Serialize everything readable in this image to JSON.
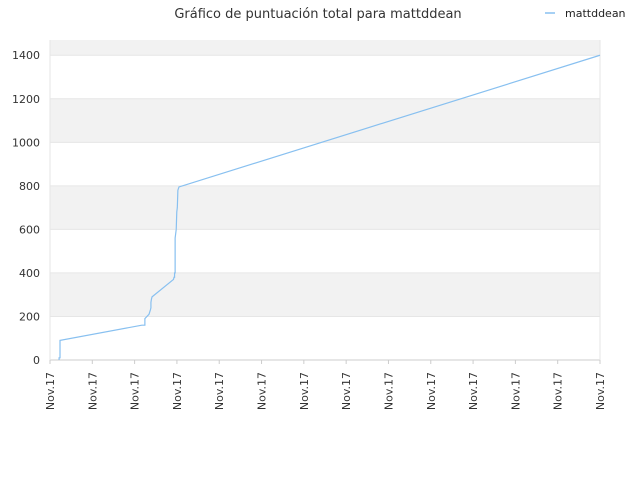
{
  "chart_data": {
    "type": "line",
    "title": "Gráfico de puntuación total para mattddean",
    "xlabel": "",
    "ylabel": "",
    "ylim": [
      0,
      1470
    ],
    "y_ticks": [
      0,
      200,
      400,
      600,
      800,
      1000,
      1200,
      1400
    ],
    "x_ticks": [
      "Nov.17",
      "Nov.17",
      "Nov.17",
      "Nov.17",
      "Nov.17",
      "Nov.17",
      "Nov.17",
      "Nov.17",
      "Nov.17",
      "Nov.17",
      "Nov.17",
      "Nov.17",
      "Nov.17",
      "Nov.17"
    ],
    "grid": true,
    "legend_position": "top-right",
    "series": [
      {
        "name": "mattddean",
        "color": "#88c0f0",
        "points": [
          [
            0.0165,
            0
          ],
          [
            0.0165,
            10
          ],
          [
            0.0182,
            10
          ],
          [
            0.0182,
            90
          ],
          [
            0.167,
            160
          ],
          [
            0.1725,
            160
          ],
          [
            0.1725,
            190
          ],
          [
            0.18,
            210
          ],
          [
            0.1825,
            230
          ],
          [
            0.1835,
            240
          ],
          [
            0.1835,
            265
          ],
          [
            0.1845,
            280
          ],
          [
            0.1855,
            290
          ],
          [
            0.2245,
            370
          ],
          [
            0.2255,
            380
          ],
          [
            0.2265,
            380
          ],
          [
            0.2265,
            400
          ],
          [
            0.2275,
            400
          ],
          [
            0.2275,
            560
          ],
          [
            0.2295,
            600
          ],
          [
            0.2305,
            680
          ],
          [
            0.2315,
            700
          ],
          [
            0.2325,
            780
          ],
          [
            0.2345,
            795
          ],
          [
            1.0,
            1400
          ]
        ]
      }
    ],
    "legend": [
      {
        "label": "mattddean",
        "color": "#88c0f0"
      }
    ]
  },
  "colors": {
    "band_alt": "#f2f2f2",
    "band_base": "#ffffff",
    "grid": "#e6e6e6",
    "axis": "#cccccc",
    "line": "#88c0f0"
  }
}
